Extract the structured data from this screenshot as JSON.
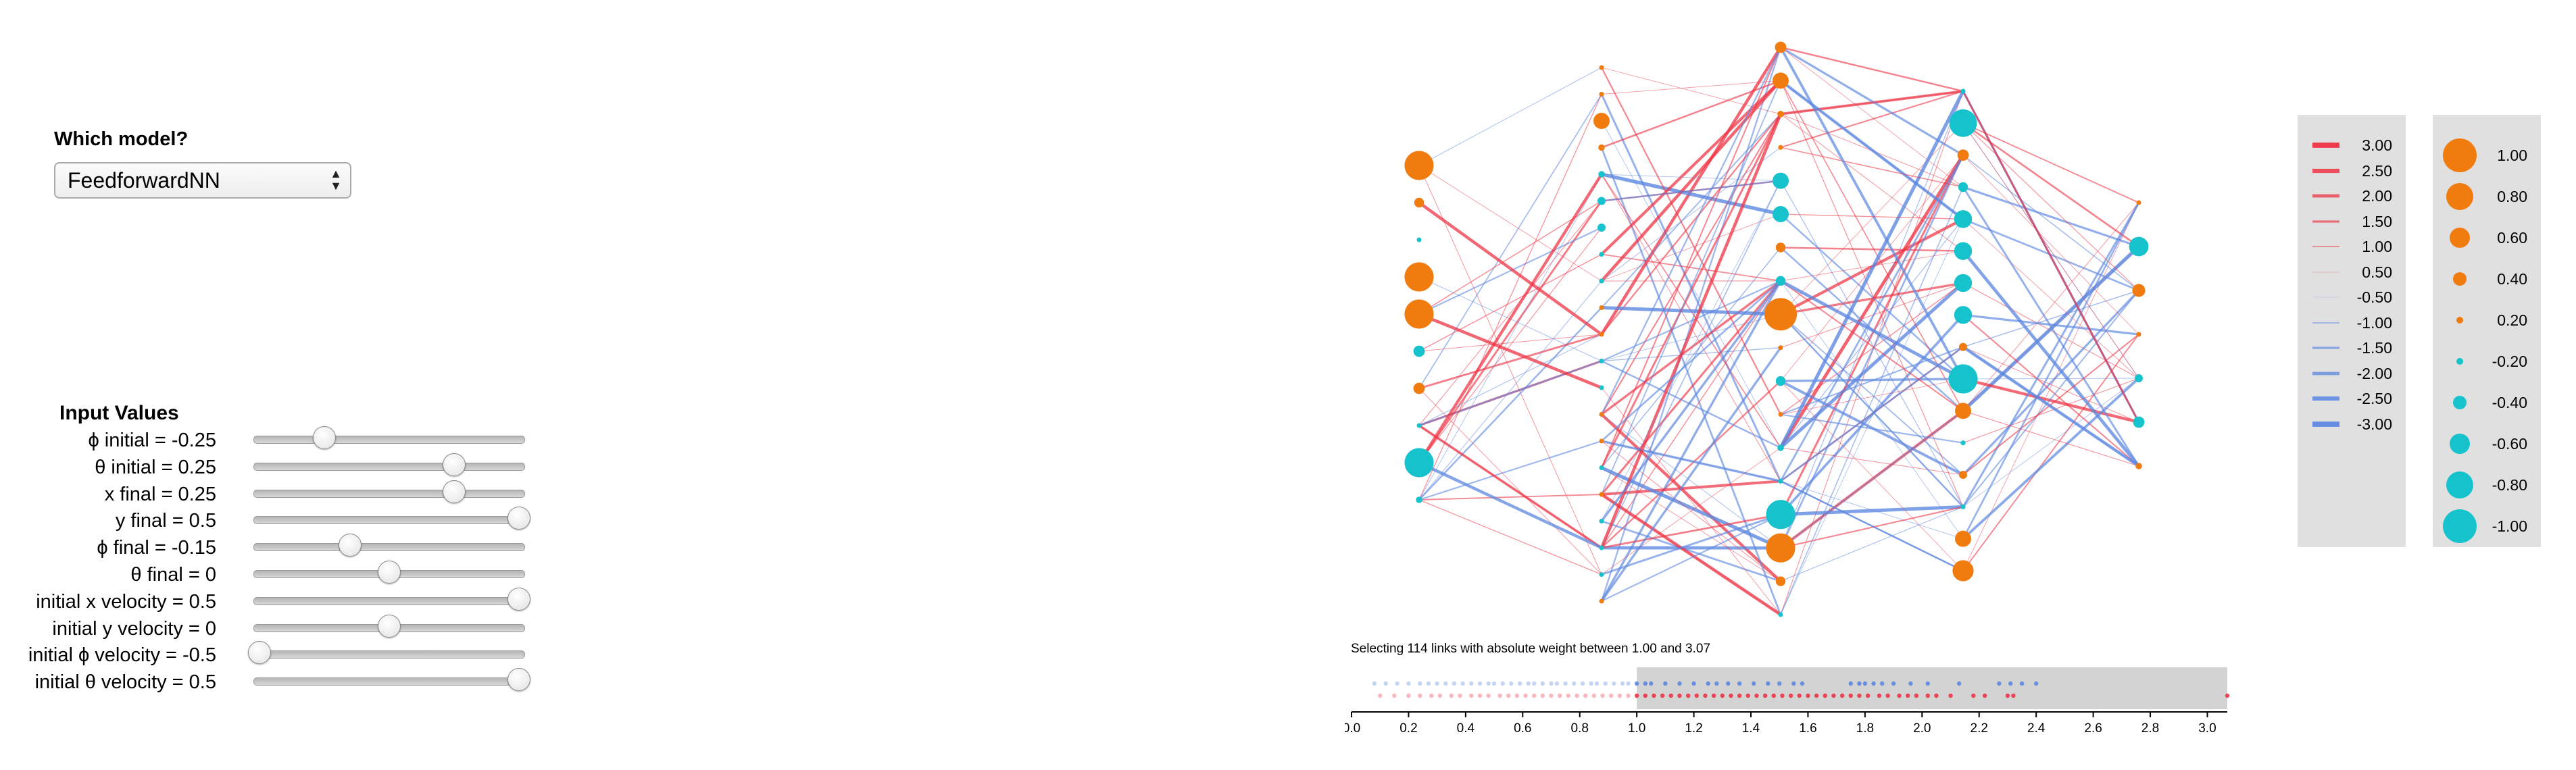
{
  "model_selector": {
    "title": "Which model?",
    "selected": "FeedforwardNN",
    "arrow_up": "▲",
    "arrow_down": "▼"
  },
  "inputs": {
    "title": "Input Values",
    "sliders": [
      {
        "label": "ϕ initial = -0.25",
        "value": -0.25,
        "min": -0.5,
        "max": 0.5
      },
      {
        "label": "θ initial = 0.25",
        "value": 0.25,
        "min": -0.5,
        "max": 0.5
      },
      {
        "label": "x final = 0.25",
        "value": 0.25,
        "min": -0.5,
        "max": 0.5
      },
      {
        "label": "y final = 0.5",
        "value": 0.5,
        "min": -0.5,
        "max": 0.5
      },
      {
        "label": "ϕ final = -0.15",
        "value": -0.15,
        "min": -0.5,
        "max": 0.5
      },
      {
        "label": "θ final = 0",
        "value": 0,
        "min": -0.5,
        "max": 0.5
      },
      {
        "label": "initial x velocity = 0.5",
        "value": 0.5,
        "min": -0.5,
        "max": 0.5
      },
      {
        "label": "initial y velocity = 0",
        "value": 0,
        "min": -0.5,
        "max": 0.5
      },
      {
        "label": "initial ϕ velocity = -0.5",
        "value": -0.5,
        "min": -0.5,
        "max": 0.5
      },
      {
        "label": "initial θ velocity = 0.5",
        "value": 0.5,
        "min": -0.5,
        "max": 0.5
      }
    ]
  },
  "colors": {
    "positive_link": "#ee3344",
    "negative_link": "#5b86e0",
    "positive_node": "#f07c10",
    "negative_node": "#16c2cc",
    "legend_bg": "#e0e0e0",
    "histogram_selected_bg": "#d3d3d3"
  },
  "weight_legend": {
    "items": [
      {
        "label": "3.00",
        "value": 3.0
      },
      {
        "label": "2.50",
        "value": 2.5
      },
      {
        "label": "2.00",
        "value": 2.0
      },
      {
        "label": "1.50",
        "value": 1.5
      },
      {
        "label": "1.00",
        "value": 1.0
      },
      {
        "label": "0.50",
        "value": 0.5
      },
      {
        "label": "-0.50",
        "value": -0.5
      },
      {
        "label": "-1.00",
        "value": -1.0
      },
      {
        "label": "-1.50",
        "value": -1.5
      },
      {
        "label": "-2.00",
        "value": -2.0
      },
      {
        "label": "-2.50",
        "value": -2.5
      },
      {
        "label": "-3.00",
        "value": -3.0
      }
    ]
  },
  "activation_legend": {
    "items": [
      {
        "label": "1.00",
        "value": 1.0
      },
      {
        "label": "0.80",
        "value": 0.8
      },
      {
        "label": "0.60",
        "value": 0.6
      },
      {
        "label": "0.40",
        "value": 0.4
      },
      {
        "label": "0.20",
        "value": 0.2
      },
      {
        "label": "-0.20",
        "value": -0.2
      },
      {
        "label": "-0.40",
        "value": -0.4
      },
      {
        "label": "-0.60",
        "value": -0.6
      },
      {
        "label": "-0.80",
        "value": -0.8
      },
      {
        "label": "-1.00",
        "value": -1.0
      }
    ]
  },
  "network": {
    "layers": [
      [
        0.9,
        0.3,
        -0.05,
        0.9,
        0.9,
        -0.35,
        0.35,
        -0.05,
        -0.9,
        -0.2
      ],
      [
        0.05,
        0.15,
        0.5,
        0.2,
        -0.2,
        -0.25,
        -0.25,
        -0.15,
        -0.15,
        0.12,
        0.1,
        -0.05,
        -0.05,
        0.1,
        0.1,
        -0.05,
        0.15,
        -0.05,
        -0.1,
        -0.05,
        0.1
      ],
      [
        0.35,
        0.5,
        0.2,
        0.15,
        -0.5,
        -0.5,
        0.3,
        -0.3,
        1.0,
        0.15,
        -0.3,
        0.1,
        -0.2,
        -0.15,
        -0.9,
        0.9,
        0.3,
        -0.1
      ],
      [
        -0.15,
        -0.85,
        0.35,
        -0.3,
        -0.55,
        -0.55,
        -0.55,
        -0.55,
        0.25,
        -0.9,
        0.5,
        -0.15,
        0.25,
        -0.15,
        0.5,
        0.65
      ],
      [
        0.12,
        -0.6,
        0.4,
        0.05,
        -0.25,
        -0.35,
        0.2
      ]
    ]
  },
  "histogram": {
    "caption": "Selecting 114 links with absolute weight between 1.00 and 3.07",
    "selection_min": 1.0,
    "selection_max": 3.07,
    "axis_min": 0.0,
    "axis_max": 3.07,
    "ticks": [
      "0.0",
      "0.2",
      "0.4",
      "0.6",
      "0.8",
      "1.0",
      "1.2",
      "1.4",
      "1.6",
      "1.8",
      "2.0",
      "2.2",
      "2.4",
      "2.6",
      "2.8",
      "3.0"
    ],
    "negative_weights": [
      0.08,
      0.12,
      0.16,
      0.2,
      0.24,
      0.27,
      0.3,
      0.33,
      0.36,
      0.39,
      0.42,
      0.45,
      0.48,
      0.5,
      0.53,
      0.56,
      0.59,
      0.62,
      0.64,
      0.67,
      0.7,
      0.72,
      0.75,
      0.78,
      0.81,
      0.84,
      0.86,
      0.89,
      0.92,
      0.95,
      0.97,
      1.0,
      1.03,
      1.05,
      1.1,
      1.15,
      1.2,
      1.25,
      1.28,
      1.32,
      1.36,
      1.41,
      1.46,
      1.5,
      1.55,
      1.58,
      1.75,
      1.78,
      1.8,
      1.83,
      1.86,
      1.9,
      1.96,
      2.02,
      2.13,
      2.27,
      2.31,
      2.35,
      2.4
    ],
    "positive_weights": [
      0.1,
      0.15,
      0.2,
      0.24,
      0.28,
      0.31,
      0.35,
      0.38,
      0.42,
      0.45,
      0.48,
      0.52,
      0.55,
      0.58,
      0.61,
      0.64,
      0.67,
      0.7,
      0.73,
      0.76,
      0.79,
      0.82,
      0.85,
      0.88,
      0.91,
      0.94,
      0.97,
      1.0,
      1.03,
      1.06,
      1.09,
      1.12,
      1.15,
      1.18,
      1.21,
      1.24,
      1.27,
      1.3,
      1.33,
      1.36,
      1.39,
      1.42,
      1.45,
      1.48,
      1.51,
      1.54,
      1.57,
      1.6,
      1.63,
      1.66,
      1.69,
      1.72,
      1.75,
      1.78,
      1.81,
      1.85,
      1.88,
      1.92,
      1.95,
      1.98,
      2.02,
      2.05,
      2.1,
      2.18,
      2.22,
      2.3,
      2.32,
      3.07
    ]
  }
}
